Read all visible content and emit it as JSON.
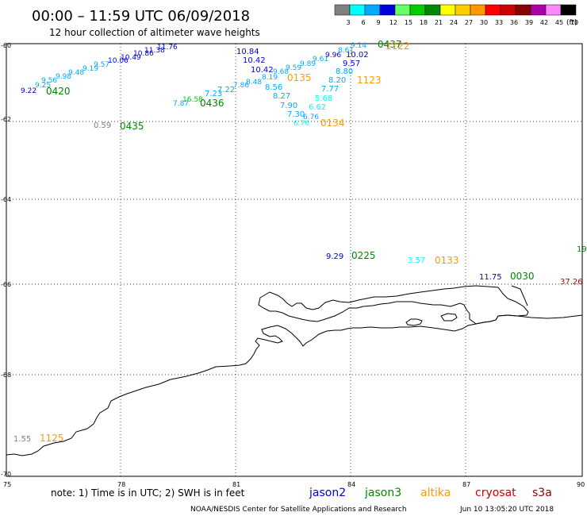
{
  "title": "00:00  –  11:59 UTC 06/09/2018",
  "subtitle": "12 hour collection of altimeter wave heights",
  "colorbar": {
    "labels": [
      "3",
      "6",
      "9",
      "12",
      "15",
      "18",
      "21",
      "24",
      "27",
      "30",
      "33",
      "36",
      "39",
      "42",
      "45",
      "70"
    ],
    "unit": "(ft)",
    "colors": [
      "#808080",
      "#00ffff",
      "#00aaff",
      "#0000dd",
      "#66ff66",
      "#00cc00",
      "#008800",
      "#ffff00",
      "#ffcc00",
      "#ff9900",
      "#ff0000",
      "#cc0000",
      "#880000",
      "#aa00aa",
      "#ff88ff",
      "#000000"
    ]
  },
  "axes": {
    "lat_labels": [
      "-60",
      "-62",
      "-64",
      "-66",
      "-68",
      "-70"
    ],
    "lon_labels": [
      "75",
      "78",
      "81",
      "84",
      "87",
      "90"
    ]
  },
  "observations": [
    {
      "text": "11.76",
      "color": "#0000dd"
    },
    {
      "text": "11.38",
      "color": "#0000dd"
    },
    {
      "text": "10.86",
      "color": "#0000dd"
    },
    {
      "text": "10.49",
      "color": "#0000dd"
    },
    {
      "text": "10.06",
      "color": "#0000dd"
    },
    {
      "text": "9.57",
      "color": "#00aaff"
    },
    {
      "text": "9.19",
      "color": "#00aaff"
    },
    {
      "text": "9.48",
      "color": "#00aaff"
    },
    {
      "text": "9.98",
      "color": "#00aaff"
    },
    {
      "text": "9.56",
      "color": "#00aaff"
    },
    {
      "text": "9.22",
      "color": "#0000dd"
    },
    {
      "text": "9.25",
      "color": "#00aaff"
    },
    {
      "text": "0420",
      "color": "#008800"
    },
    {
      "text": "10.84",
      "color": "#0000dd"
    },
    {
      "text": "10.42",
      "color": "#0000dd"
    },
    {
      "text": "10.42",
      "color": "#0000dd"
    },
    {
      "text": "9.68",
      "color": "#00aaff"
    },
    {
      "text": "9.59",
      "color": "#00aaff"
    },
    {
      "text": "9.89",
      "color": "#00aaff"
    },
    {
      "text": "9.61",
      "color": "#00aaff"
    },
    {
      "text": "9.96",
      "color": "#0000dd"
    },
    {
      "text": "10.02",
      "color": "#0000dd"
    },
    {
      "text": "8.19",
      "color": "#00aaff"
    },
    {
      "text": "0135",
      "color": "#ff9900"
    },
    {
      "text": "8.48",
      "color": "#00aaff"
    },
    {
      "text": "8.56",
      "color": "#00aaff"
    },
    {
      "text": "8.27",
      "color": "#00aaff"
    },
    {
      "text": "7.90",
      "color": "#00aaff"
    },
    {
      "text": "7.30",
      "color": "#00aaff"
    },
    {
      "text": "6.76",
      "color": "#00ffff"
    },
    {
      "text": "6.76",
      "color": "#00aaff"
    },
    {
      "text": "6.62",
      "color": "#00ffff"
    },
    {
      "text": "5.68",
      "color": "#00ffff"
    },
    {
      "text": "7.77",
      "color": "#00aaff"
    },
    {
      "text": "8.20",
      "color": "#00aaff"
    },
    {
      "text": "8.80",
      "color": "#00aaff"
    },
    {
      "text": "9.57",
      "color": "#0000dd"
    },
    {
      "text": "8.61",
      "color": "#00aaff"
    },
    {
      "text": "9.14",
      "color": "#00aaff"
    },
    {
      "text": "0134",
      "color": "#ff9900"
    },
    {
      "text": "1123",
      "color": "#ff9900"
    },
    {
      "text": "0437",
      "color": "#008800"
    },
    {
      "text": "1122",
      "color": "#ff9900"
    },
    {
      "text": "7.87",
      "color": "#00aaff"
    },
    {
      "text": "16.58",
      "color": "#00cc00"
    },
    {
      "text": "0436",
      "color": "#008800"
    },
    {
      "text": "7.23",
      "color": "#00aaff"
    },
    {
      "text": "7.22",
      "color": "#00aaff"
    },
    {
      "text": "7.86",
      "color": "#00aaff"
    },
    {
      "text": "0.59",
      "color": "#808080"
    },
    {
      "text": "0435",
      "color": "#008800"
    },
    {
      "text": "9.29",
      "color": "#0000dd"
    },
    {
      "text": "0225",
      "color": "#008800"
    },
    {
      "text": "3.57",
      "color": "#00ffff"
    },
    {
      "text": "0133",
      "color": "#ff9900"
    },
    {
      "text": "11.75",
      "color": "#0000dd"
    },
    {
      "text": "0030",
      "color": "#008800"
    },
    {
      "text": "37.26",
      "color": "#cc0000"
    },
    {
      "text": "19",
      "color": "#008800"
    },
    {
      "text": "1.55",
      "color": "#808080"
    },
    {
      "text": "1125",
      "color": "#ff9900"
    }
  ],
  "footer": {
    "note": "note:  1) Time is in UTC;  2) SWH is in feet",
    "satellites": [
      {
        "name": "jason2",
        "color": "#0000dd"
      },
      {
        "name": "jason3",
        "color": "#008800"
      },
      {
        "name": "altika",
        "color": "#ff9900"
      },
      {
        "name": "cryosat",
        "color": "#cc0000"
      },
      {
        "name": "s3a",
        "color": "#880000"
      }
    ],
    "credit": "NOAA/NESDIS Center for Satellite Applications and Research",
    "timestamp": "Jun 10 13:05:20 UTC 2018"
  }
}
